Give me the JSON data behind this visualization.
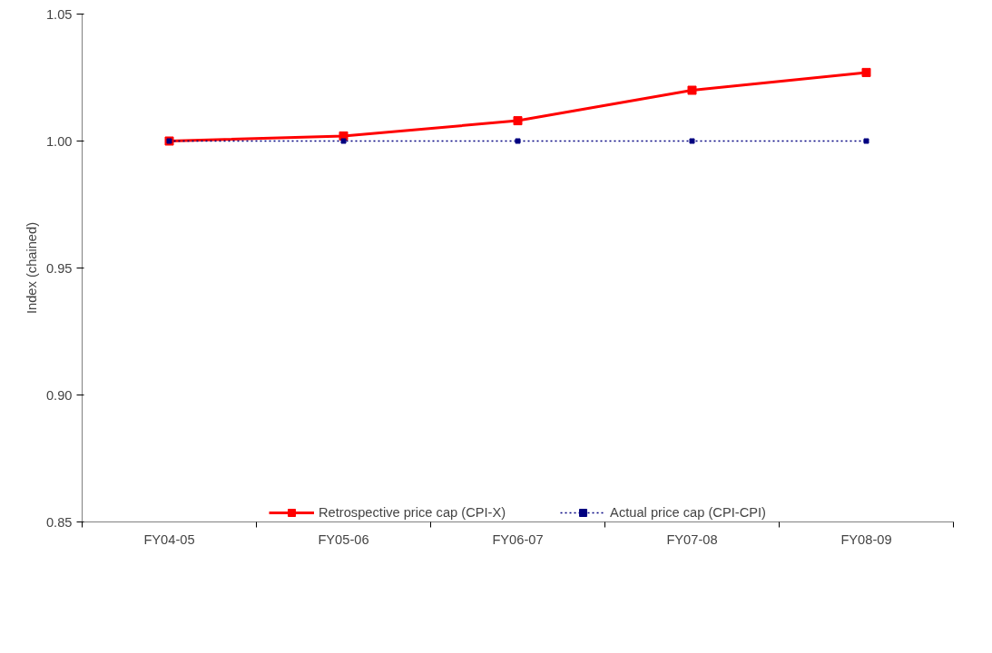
{
  "chart_data": {
    "type": "line",
    "ylabel": "Index (chained)",
    "categories": [
      "FY04-05",
      "FY05-06",
      "FY06-07",
      "FY07-08",
      "FY08-09"
    ],
    "series": [
      {
        "name": "Retrospective price cap (CPI-X)",
        "color": "#ff0000",
        "values": [
          1.0,
          1.002,
          1.008,
          1.02,
          1.027
        ],
        "line_style": "solid"
      },
      {
        "name": "Actual price cap (CPI-CPI)",
        "color": "#000080",
        "values": [
          1.0,
          1.0,
          1.0,
          1.0,
          1.0
        ],
        "line_style": "dotted"
      }
    ],
    "ylim": [
      0.85,
      1.05
    ],
    "yticks": [
      {
        "value": 0.85,
        "label": "0.85"
      },
      {
        "value": 0.9,
        "label": "0.90"
      },
      {
        "value": 0.95,
        "label": "0.95"
      },
      {
        "value": 1.0,
        "label": "1.00"
      },
      {
        "value": 1.05,
        "label": "1.05"
      }
    ],
    "grid": false,
    "legend": "bottom",
    "marker": "square"
  }
}
